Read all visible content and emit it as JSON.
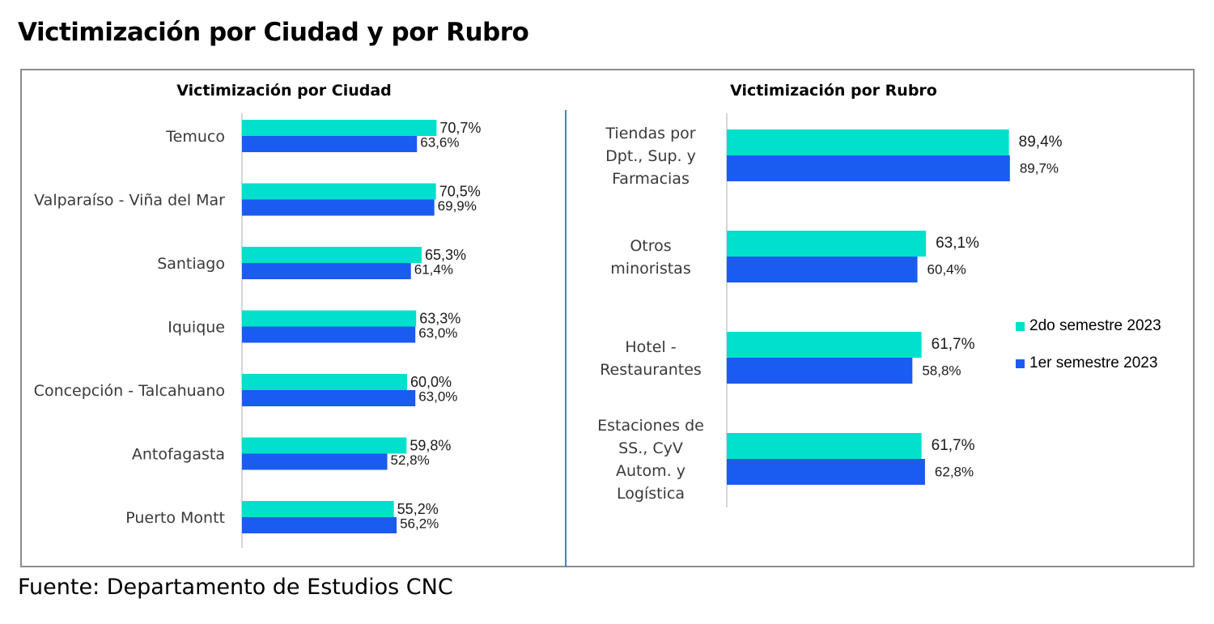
{
  "title": "Victimización por Ciudad y por Rubro",
  "source": "Fuente: Departamento de Estudios CNC",
  "colors": {
    "series_2do": "#00e0cc",
    "series_1er": "#1a5cf0",
    "axis": "#c8c8c8"
  },
  "legend": [
    {
      "label": "2do semestre 2023",
      "color": "#00e0cc"
    },
    {
      "label": "1er semestre 2023",
      "color": "#1a5cf0"
    }
  ],
  "chart_data": [
    {
      "type": "bar",
      "orientation": "horizontal",
      "title": "Victimización por Ciudad",
      "categories": [
        "Temuco",
        "Valparaíso - Viña del Mar",
        "Santiago",
        "Iquique",
        "Concepción - Talcahuano",
        "Antofagasta",
        "Puerto Montt"
      ],
      "series": [
        {
          "name": "2do semestre 2023",
          "values": [
            70.7,
            70.5,
            65.3,
            63.3,
            60.0,
            59.8,
            55.2
          ],
          "labels": [
            "70,7%",
            "70,5%",
            "65,3%",
            "63,3%",
            "60,0%",
            "59,8%",
            "55,2%"
          ]
        },
        {
          "name": "1er semestre 2023",
          "values": [
            63.6,
            69.9,
            61.4,
            63.0,
            63.0,
            52.8,
            56.2
          ],
          "labels": [
            "63,6%",
            "69,9%",
            "61,4%",
            "63,0%",
            "63,0%",
            "52,8%",
            "56,2%"
          ]
        }
      ],
      "xlim": [
        0,
        100
      ]
    },
    {
      "type": "bar",
      "orientation": "horizontal",
      "title": "Victimización por Rubro",
      "categories": [
        [
          "Tiendas por",
          "Dpt., Sup. y",
          "Farmacias"
        ],
        [
          "Otros",
          "minoristas"
        ],
        [
          "Hotel -",
          "Restaurantes"
        ],
        [
          "Estaciones de",
          "SS., CyV",
          "Autom. y",
          "Logística"
        ]
      ],
      "series": [
        {
          "name": "2do semestre 2023",
          "values": [
            89.4,
            63.1,
            61.7,
            61.7
          ],
          "labels": [
            "89,4%",
            "63,1%",
            "61,7%",
            "61,7%"
          ]
        },
        {
          "name": "1er semestre 2023",
          "values": [
            89.7,
            60.4,
            58.8,
            62.8
          ],
          "labels": [
            "89,7%",
            "60,4%",
            "58,8%",
            "62,8%"
          ]
        }
      ],
      "xlim": [
        0,
        100
      ],
      "legend": "right"
    }
  ]
}
